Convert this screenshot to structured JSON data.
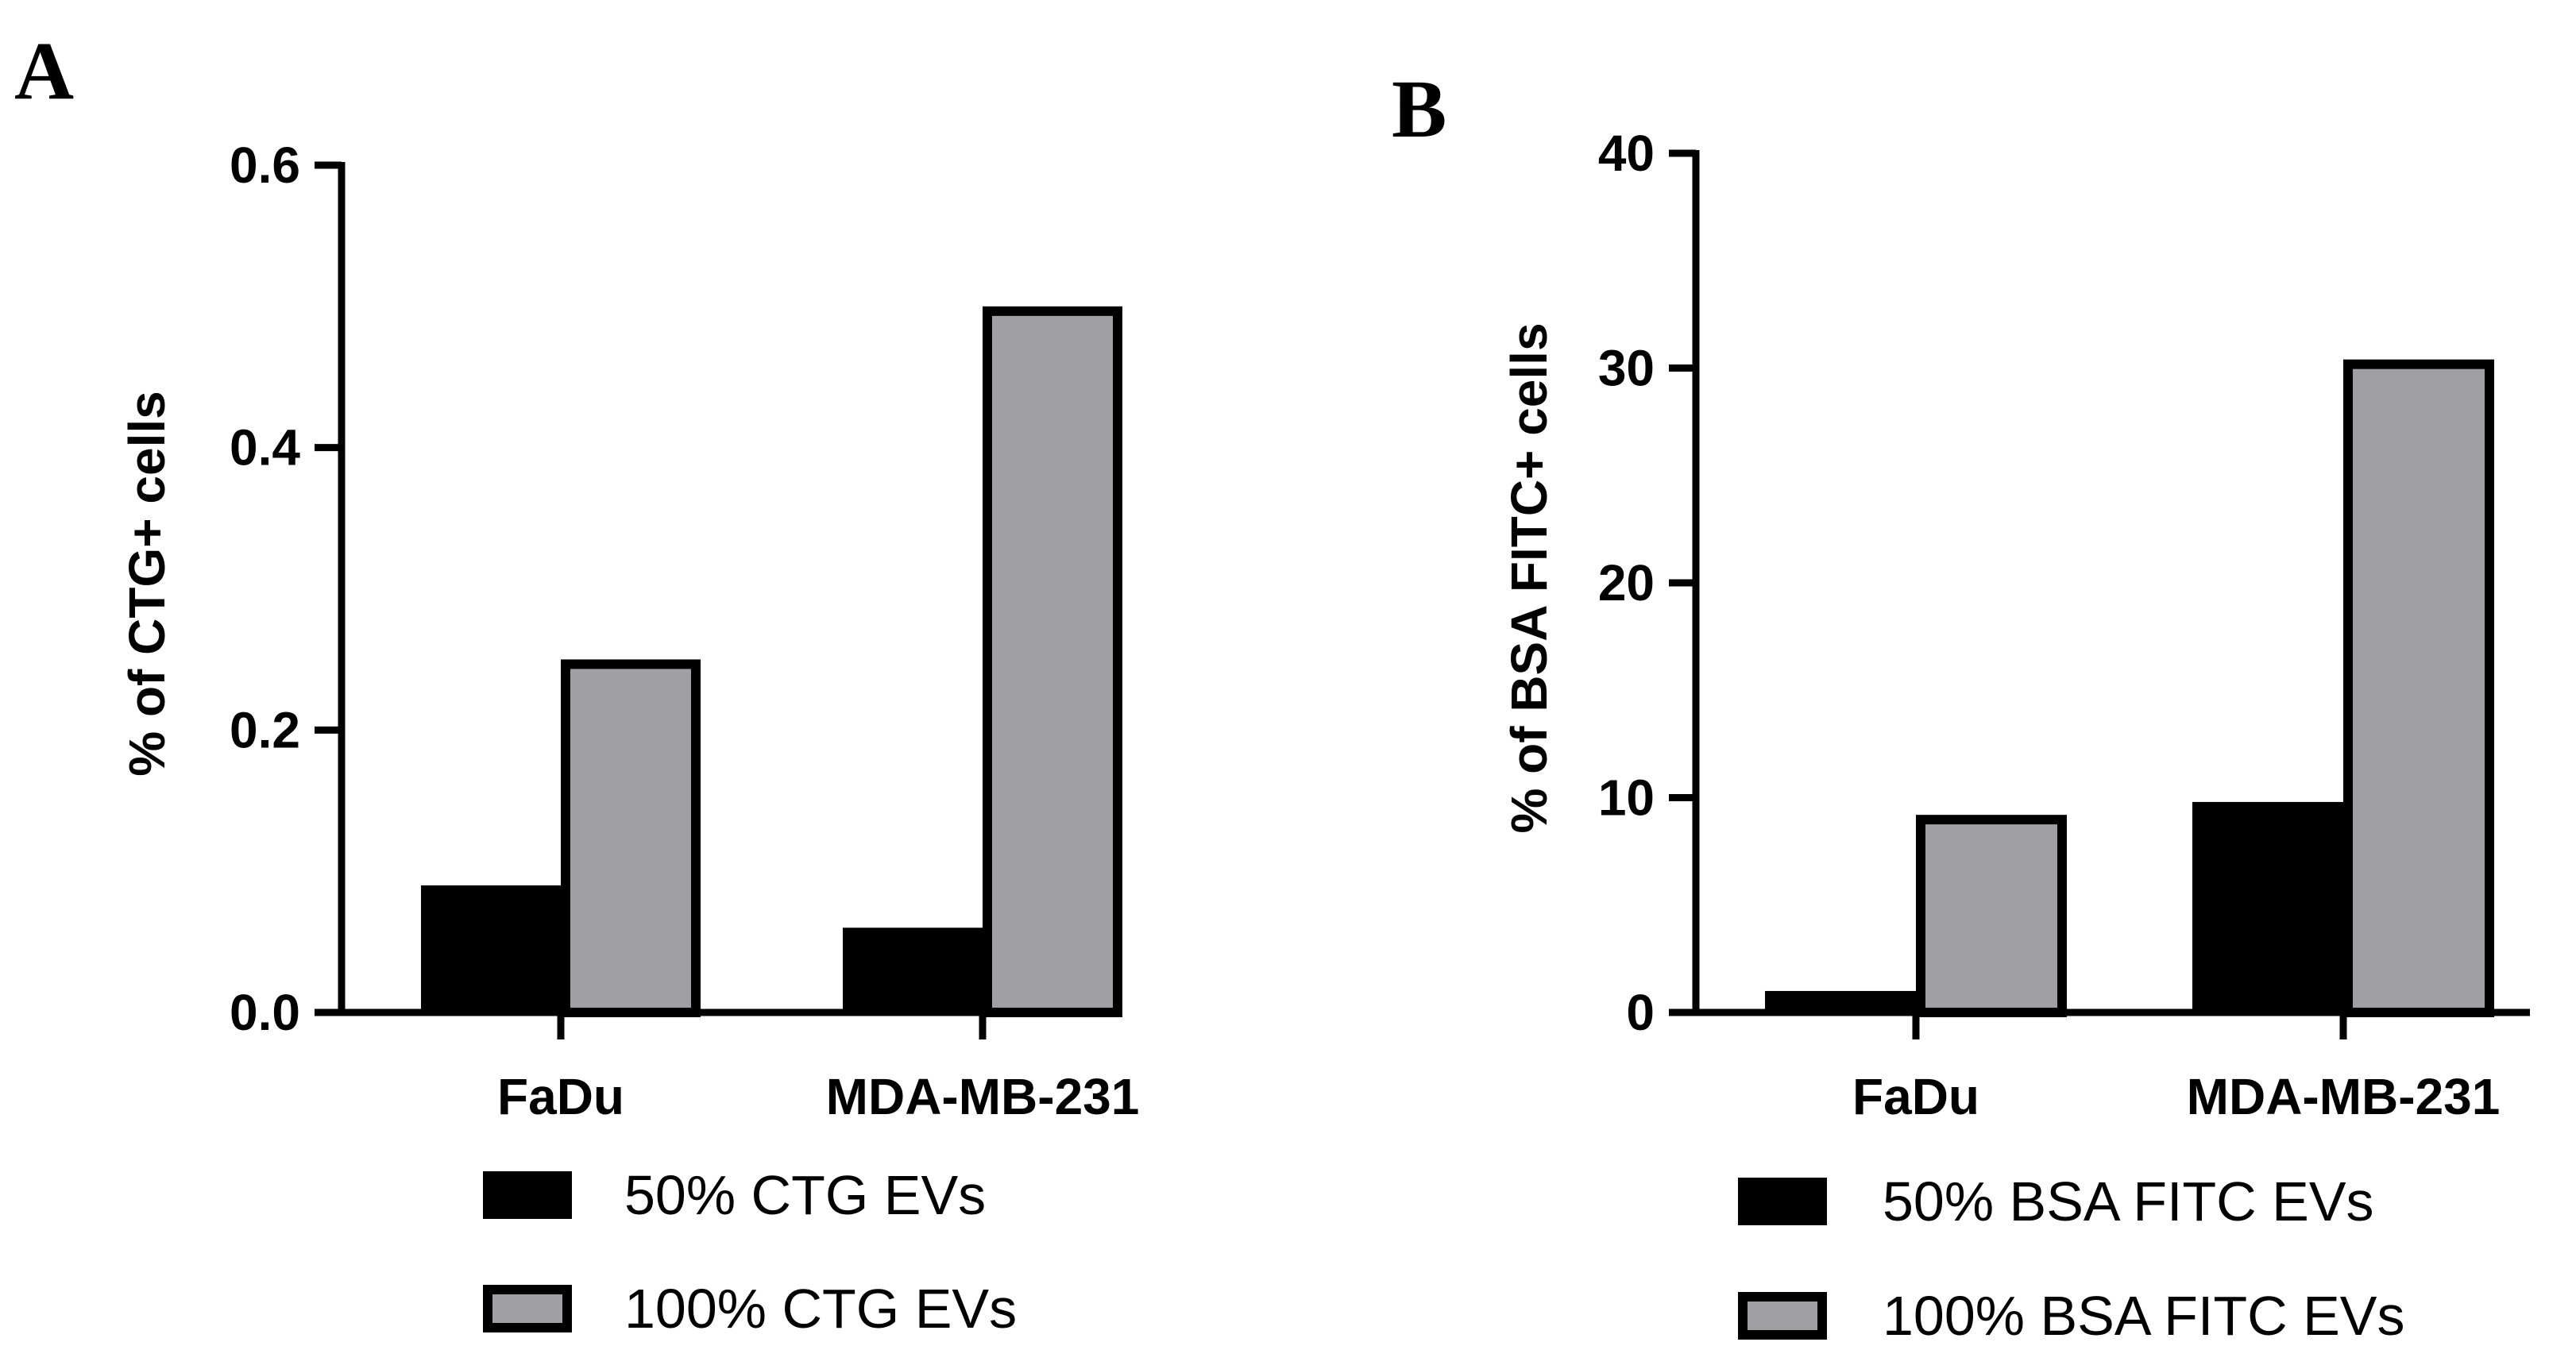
{
  "chart_data": [
    {
      "panel_label": "A",
      "type": "bar",
      "ylabel": "% of CTG+ cells",
      "xlabel": "",
      "ylim": [
        0,
        0.6
      ],
      "yticks": [
        0.0,
        0.2,
        0.4,
        0.6
      ],
      "ytick_labels": [
        "0.0",
        "0.2",
        "0.4",
        "0.6"
      ],
      "categories": [
        "FaDu",
        "MDA-MB-231"
      ],
      "series": [
        {
          "name": "50% CTG EVs",
          "values": [
            0.09,
            0.06
          ],
          "color": "#000000"
        },
        {
          "name": "100% CTG EVs",
          "values": [
            0.25,
            0.5
          ],
          "color": "#a0a0a4"
        }
      ],
      "legend": "bottom",
      "grid": false
    },
    {
      "panel_label": "B",
      "type": "bar",
      "ylabel": "% of BSA FITC+ cells",
      "xlabel": "",
      "ylim": [
        0,
        40
      ],
      "yticks": [
        0,
        10,
        20,
        30,
        40
      ],
      "ytick_labels": [
        "0",
        "10",
        "20",
        "30",
        "40"
      ],
      "categories": [
        "FaDu",
        "MDA-MB-231"
      ],
      "series": [
        {
          "name": "50% BSA FITC EVs",
          "values": [
            1.0,
            9.8
          ],
          "color": "#000000"
        },
        {
          "name": "100% BSA FITC EVs",
          "values": [
            9.2,
            30.4
          ],
          "color": "#a0a0a4"
        }
      ],
      "legend": "bottom",
      "grid": false
    }
  ]
}
